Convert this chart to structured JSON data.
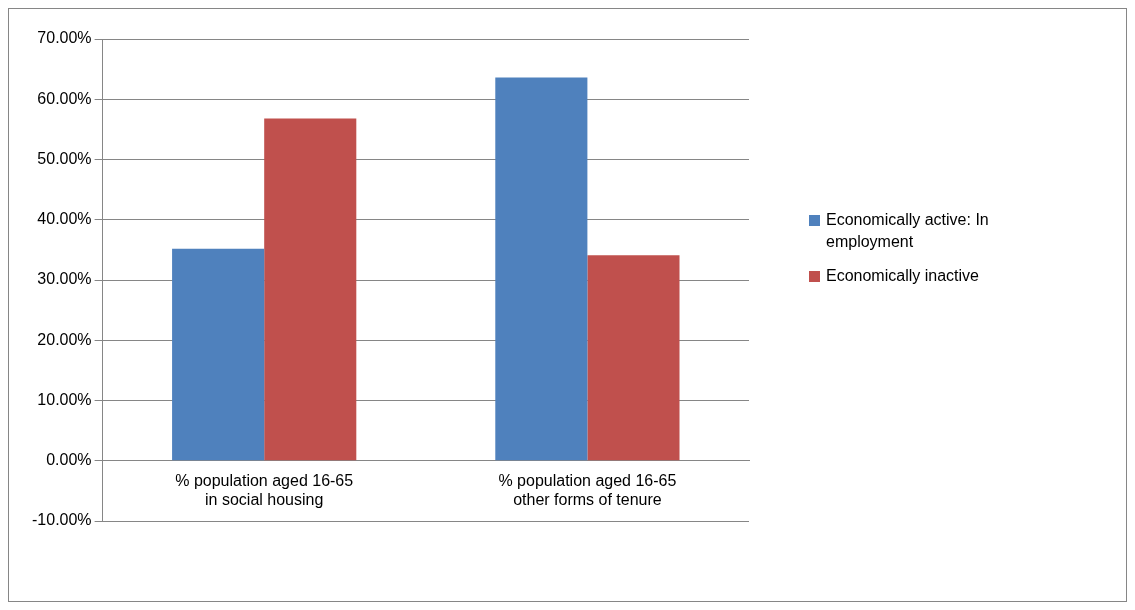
{
  "chart_data": {
    "type": "bar",
    "categories": [
      "% population aged 16-65 in social housing",
      "% population aged 16-65 other forms of tenure"
    ],
    "series": [
      {
        "name": "Economically active: In employment",
        "color": "#4f81bd",
        "values": [
          35.2,
          63.6
        ]
      },
      {
        "name": "Economically inactive",
        "color": "#c0504d",
        "values": [
          56.8,
          34.1
        ]
      }
    ],
    "ylim": [
      -10,
      70
    ],
    "yticks": [
      {
        "value": -10,
        "label": "-10.00%"
      },
      {
        "value": 0,
        "label": "0.00%"
      },
      {
        "value": 10,
        "label": "10.00%"
      },
      {
        "value": 20,
        "label": "20.00%"
      },
      {
        "value": 30,
        "label": "30.00%"
      },
      {
        "value": 40,
        "label": "40.00%"
      },
      {
        "value": 50,
        "label": "50.00%"
      },
      {
        "value": 60,
        "label": "60.00%"
      },
      {
        "value": 70,
        "label": "70.00%"
      }
    ],
    "grid": "y",
    "legend": "right"
  }
}
